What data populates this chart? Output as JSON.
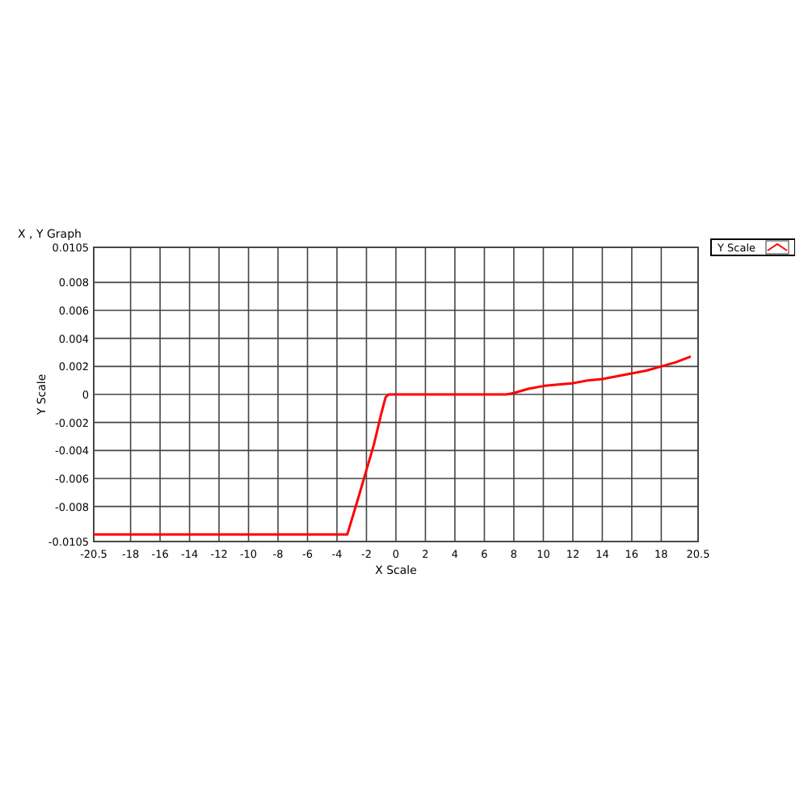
{
  "chart_data": {
    "type": "line",
    "title": "X , Y Graph",
    "xlabel": "X Scale",
    "ylabel": "Y Scale",
    "x": [
      -20.5,
      -16,
      -12,
      -8,
      -4,
      -3.3,
      -2.5,
      -2,
      -1.5,
      -1,
      -0.7,
      -0.5,
      0,
      2,
      4,
      6,
      7.5,
      8,
      9,
      10,
      11,
      12,
      13,
      14,
      15,
      16,
      17,
      18,
      19,
      20
    ],
    "series": [
      {
        "name": "Y Scale",
        "color": "#ff0000",
        "values": [
          -0.01,
          -0.01,
          -0.01,
          -0.01,
          -0.01,
          -0.01,
          -0.0072,
          -0.0054,
          -0.0036,
          -0.0014,
          -0.0002,
          0,
          0,
          0,
          0,
          0,
          0,
          0.0001,
          0.0004,
          0.0006,
          0.0007,
          0.0008,
          0.001,
          0.0011,
          0.0013,
          0.0015,
          0.0017,
          0.002,
          0.0023,
          0.0027
        ]
      }
    ],
    "xlim": [
      -20.5,
      20.5
    ],
    "xticks": [
      -20.5,
      -18,
      -16,
      -14,
      -12,
      -10,
      -8,
      -6,
      -4,
      -2,
      0,
      2,
      4,
      6,
      8,
      10,
      12,
      14,
      16,
      18,
      20.5
    ],
    "ylim": [
      -0.0105,
      0.0105
    ],
    "yticks": [
      -0.0105,
      -0.008,
      -0.006,
      -0.004,
      -0.002,
      0,
      0.002,
      0.004,
      0.006,
      0.008,
      0.0105
    ],
    "grid": true,
    "legend": "top right",
    "marker": "none",
    "line_style": "solid"
  }
}
